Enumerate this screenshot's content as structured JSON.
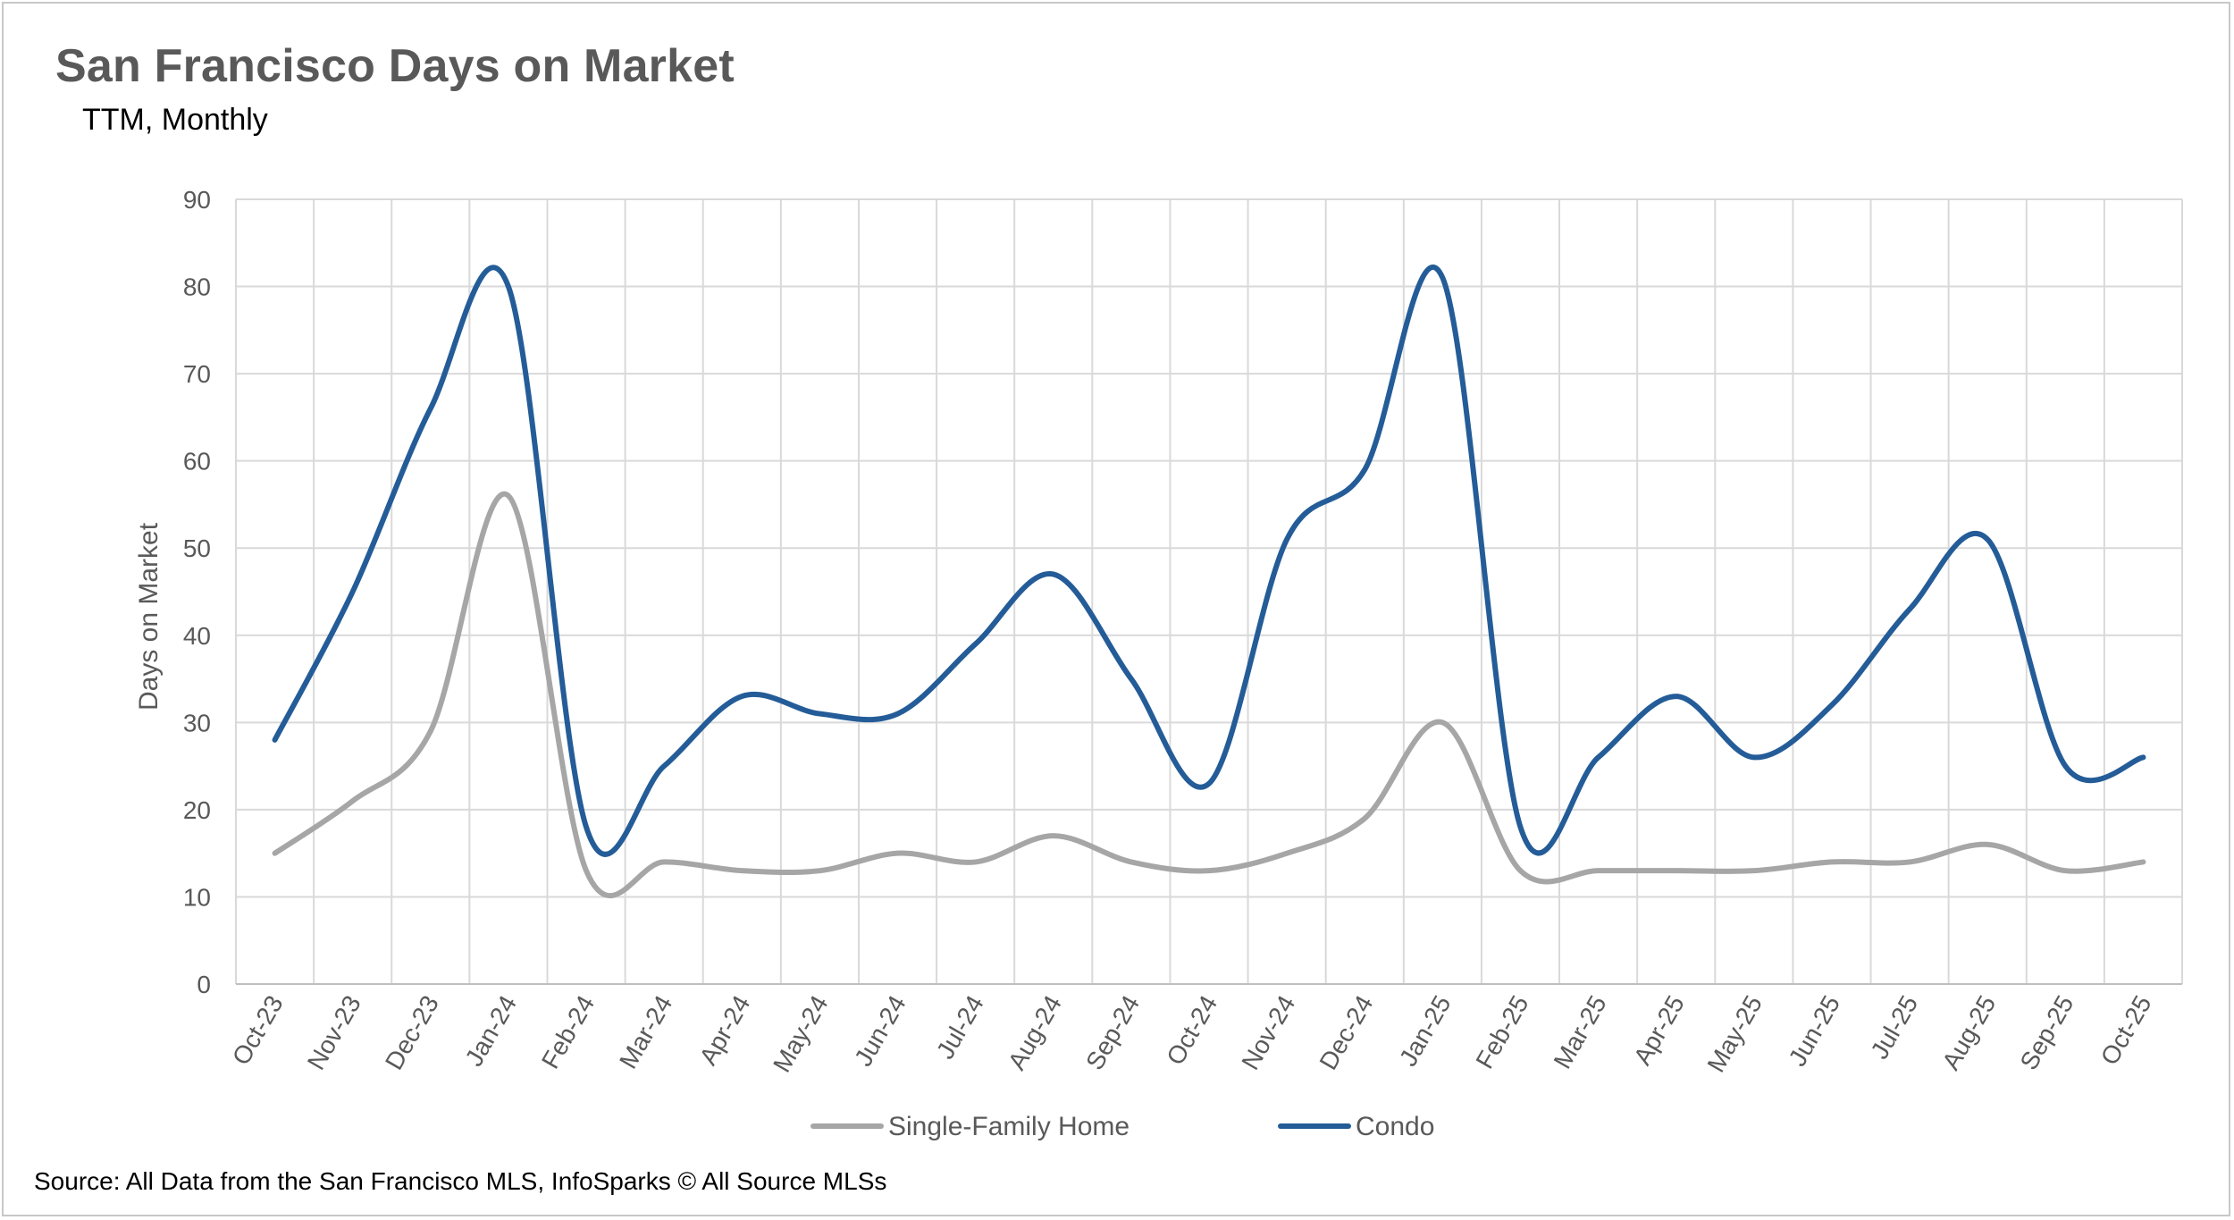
{
  "chart_data": {
    "type": "line",
    "title": "San Francisco Days on Market",
    "subtitle": "TTM, Monthly",
    "xlabel": "",
    "ylabel": "Days on Market",
    "ylim": [
      0,
      90
    ],
    "yticks": [
      0,
      10,
      20,
      30,
      40,
      50,
      60,
      70,
      80,
      90
    ],
    "grid": true,
    "legend_position": "bottom",
    "categories": [
      "Oct-23",
      "Nov-23",
      "Dec-23",
      "Jan-24",
      "Feb-24",
      "Mar-24",
      "Apr-24",
      "May-24",
      "Jun-24",
      "Jul-24",
      "Aug-24",
      "Sep-24",
      "Oct-24",
      "Nov-24",
      "Dec-24",
      "Jan-25",
      "Feb-25",
      "Mar-25",
      "Apr-25",
      "May-25",
      "Jun-25",
      "Jul-25",
      "Aug-25",
      "Sep-25",
      "Oct-25"
    ],
    "series": [
      {
        "name": "Single-Family Home",
        "color": "#a6a6a6",
        "values": [
          15,
          21,
          29,
          56,
          13,
          14,
          13,
          13,
          15,
          14,
          17,
          14,
          13,
          15,
          19,
          30,
          13,
          13,
          13,
          13,
          14,
          14,
          16,
          13,
          14
        ]
      },
      {
        "name": "Condo",
        "color": "#245c98",
        "values": [
          28,
          45,
          66,
          80,
          18,
          25,
          33,
          31,
          31,
          39,
          47,
          35,
          23,
          51,
          59,
          81,
          18,
          26,
          33,
          26,
          32,
          43,
          51,
          25,
          26
        ]
      }
    ],
    "source": "Source: All Data from the San Francisco MLS, InfoSparks © All Source MLSs"
  }
}
